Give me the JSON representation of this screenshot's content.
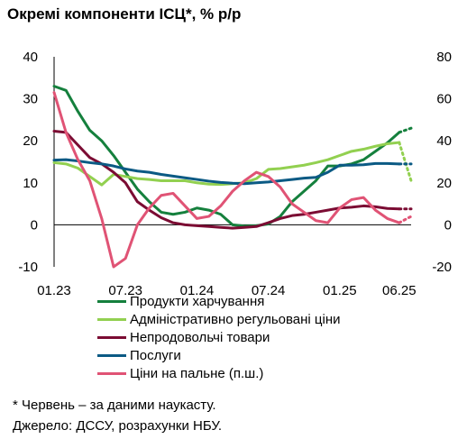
{
  "title": "Окремі компоненти ІСЦ*, % р/р",
  "footnote": "* Червень – за даними наукасту.",
  "source": "Джерело: ДССУ, розрахунки НБУ.",
  "chart_data": {
    "type": "line",
    "x_ticks": [
      "01.23",
      "07.23",
      "01.24",
      "07.24",
      "01.25",
      "06.25"
    ],
    "x_tick_months": [
      0,
      6,
      12,
      18,
      24,
      29
    ],
    "ylim": [
      -10,
      40
    ],
    "y_ticks": [
      "40",
      "30",
      "20",
      "10",
      "0",
      "-10"
    ],
    "y2lim": [
      -20,
      80
    ],
    "y2_ticks": [
      "80",
      "60",
      "40",
      "20",
      "0",
      "-20"
    ],
    "nowcast_from_month": 29,
    "series": [
      {
        "name": "Продукти харчування",
        "color": "#15803d",
        "axis": "left",
        "values": [
          33,
          32,
          27,
          22.5,
          20,
          16.5,
          12.5,
          8.5,
          5.5,
          3,
          2.5,
          3,
          4,
          3.5,
          2.5,
          0,
          -0.3,
          -0.2,
          0.2,
          2,
          5.5,
          8,
          10.5,
          14,
          14,
          14.5,
          15.5,
          17.5,
          19.5,
          22,
          23
        ]
      },
      {
        "name": "Адміністративно регульовані ціни",
        "color": "#92d050",
        "axis": "left",
        "values": [
          14.8,
          14.5,
          13.5,
          11.5,
          9.5,
          12,
          11.5,
          11,
          10.8,
          10.5,
          10.5,
          10.5,
          10,
          9.7,
          9.6,
          9.8,
          10,
          11,
          13.2,
          13.4,
          13.8,
          14.2,
          14.8,
          15.5,
          16.5,
          17.5,
          18,
          18.7,
          19.3,
          19.6,
          10.5
        ]
      },
      {
        "name": "Непродовольчі товари",
        "color": "#7b0c33",
        "axis": "left",
        "values": [
          22.3,
          22,
          19,
          16,
          14.5,
          12.5,
          10,
          5.5,
          3.5,
          1.7,
          0.5,
          0,
          -0.2,
          -0.4,
          -0.6,
          -0.8,
          -0.6,
          -0.4,
          0.5,
          1.5,
          2.2,
          2.5,
          3,
          3.5,
          4,
          4.2,
          4.5,
          4.3,
          3.9,
          3.8,
          3.8
        ]
      },
      {
        "name": "Послуги",
        "color": "#0b5a84",
        "axis": "left",
        "values": [
          15.4,
          15.5,
          15.2,
          14.8,
          14.5,
          14,
          13.3,
          12.8,
          12.5,
          12,
          11.6,
          11.2,
          10.8,
          10.4,
          10.1,
          9.9,
          9.8,
          10,
          10.2,
          10.5,
          10.8,
          11.1,
          11.3,
          12.5,
          14.2,
          14.2,
          14.3,
          14.6,
          14.6,
          14.5,
          14.5
        ]
      },
      {
        "name": "Ціни на пальне (п.ш.)",
        "color": "#e05375",
        "axis": "right",
        "values": [
          63,
          44,
          31,
          21,
          3,
          -20,
          -16,
          0,
          8,
          14,
          15,
          9,
          3,
          4,
          9,
          16,
          21,
          25,
          23,
          18,
          10,
          6,
          2,
          1,
          8,
          12,
          13,
          7,
          3,
          1,
          4
        ]
      }
    ]
  }
}
